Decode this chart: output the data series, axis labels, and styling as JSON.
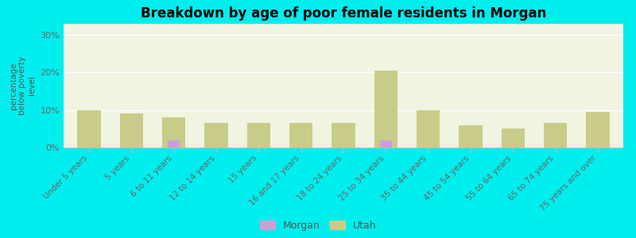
{
  "title": "Breakdown by age of poor female residents in Morgan",
  "ylabel": "percentage\nbelow poverty\nlevel",
  "categories": [
    "Under 5 years",
    "5 years",
    "6 to 11 years",
    "12 to 14 years",
    "15 years",
    "16 and 17 years",
    "18 to 24 years",
    "25 to 34 years",
    "35 to 44 years",
    "45 to 54 years",
    "55 to 64 years",
    "65 to 74 years",
    "75 years and over"
  ],
  "morgan_values": [
    0,
    0,
    2.0,
    0,
    0,
    0,
    0,
    2.0,
    0,
    0,
    0,
    0,
    0
  ],
  "utah_values": [
    10.0,
    9.0,
    8.0,
    6.5,
    6.5,
    6.5,
    6.5,
    20.5,
    10.0,
    6.0,
    5.0,
    6.5,
    9.5
  ],
  "morgan_color": "#c8a0d8",
  "utah_color": "#c8cc88",
  "background_color": "#00eeee",
  "plot_bg_color": "#f0f4e0",
  "ylim": [
    0,
    33
  ],
  "yticks": [
    0,
    10,
    20,
    30
  ],
  "ytick_labels": [
    "0%",
    "10%",
    "20%",
    "30%"
  ]
}
